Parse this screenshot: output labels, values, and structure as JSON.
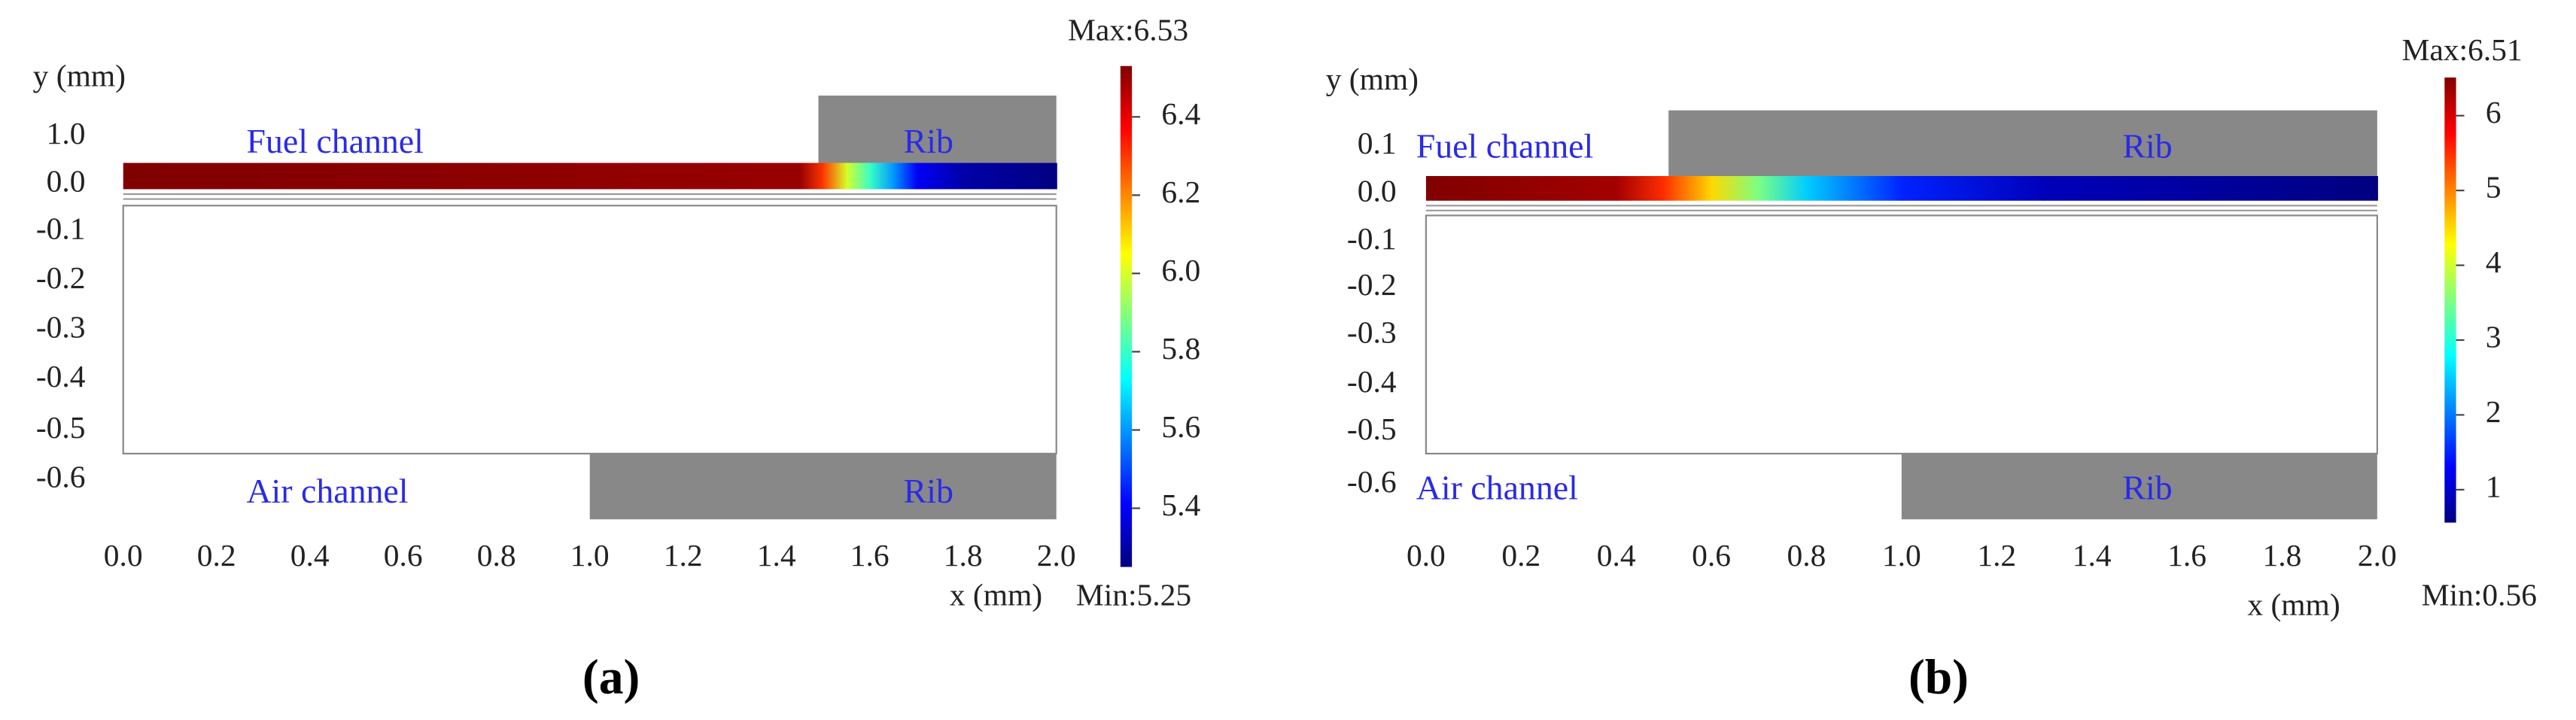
{
  "chart_data": [
    {
      "type": "heatmap",
      "panel_label": "(a)",
      "x_label": "x (mm)",
      "y_label": "y (mm)",
      "xlim": [
        0,
        2
      ],
      "xticks": [
        {
          "value": 0,
          "label": "0.0"
        },
        {
          "value": 0.2,
          "label": "0.2"
        },
        {
          "value": 0.4,
          "label": "0.4"
        },
        {
          "value": 0.6,
          "label": "0.6"
        },
        {
          "value": 0.8,
          "label": "0.8"
        },
        {
          "value": 1,
          "label": "1.0"
        },
        {
          "value": 1.2,
          "label": "1.2"
        },
        {
          "value": 1.4,
          "label": "1.4"
        },
        {
          "value": 1.6,
          "label": "1.6"
        },
        {
          "value": 1.8,
          "label": "1.8"
        },
        {
          "value": 2,
          "label": "2.0"
        }
      ],
      "yticks": [
        {
          "value": 1,
          "label": "1.0"
        },
        {
          "value": 0,
          "label": "0.0"
        },
        {
          "value": -0.1,
          "label": "-0.1"
        },
        {
          "value": -0.2,
          "label": "-0.2"
        },
        {
          "value": -0.3,
          "label": "-0.3"
        },
        {
          "value": -0.4,
          "label": "-0.4"
        },
        {
          "value": -0.5,
          "label": "-0.5"
        },
        {
          "value": -0.6,
          "label": "-0.6"
        }
      ],
      "fuel_channel": "Fuel channel",
      "air_channel": "Air channel",
      "ribs": [
        {
          "name": "Rib",
          "side": "top",
          "x": [
            1.49,
            2
          ]
        },
        {
          "name": "Rib",
          "side": "bottom",
          "x": [
            1,
            2
          ]
        }
      ],
      "profile": {
        "x": [
          0,
          1.45,
          1.5,
          1.55,
          1.6,
          1.65,
          1.7,
          1.8,
          2
        ],
        "values": [
          6.53,
          6.5,
          6.3,
          6.0,
          5.8,
          5.6,
          5.4,
          5.3,
          5.25
        ]
      },
      "colorbar": {
        "max_label": "Max:6.53",
        "min_label": "Min:5.25",
        "clim": [
          5.25,
          6.53
        ],
        "ticks": [
          6.4,
          6.2,
          {
            "value": 6,
            "label": "6.0"
          },
          5.8,
          5.6,
          5.4
        ]
      }
    },
    {
      "type": "heatmap",
      "panel_label": "(b)",
      "x_label": "x (mm)",
      "y_label": "y (mm)",
      "xlim": [
        0,
        2
      ],
      "xticks": [
        {
          "value": 0,
          "label": "0.0"
        },
        {
          "value": 0.2,
          "label": "0.2"
        },
        {
          "value": 0.4,
          "label": "0.4"
        },
        {
          "value": 0.6,
          "label": "0.6"
        },
        {
          "value": 0.8,
          "label": "0.8"
        },
        {
          "value": 1,
          "label": "1.0"
        },
        {
          "value": 1.2,
          "label": "1.2"
        },
        {
          "value": 1.4,
          "label": "1.4"
        },
        {
          "value": 1.6,
          "label": "1.6"
        },
        {
          "value": 1.8,
          "label": "1.8"
        },
        {
          "value": 2,
          "label": "2.0"
        }
      ],
      "yticks": [
        0.1,
        {
          "value": 0,
          "label": "0.0"
        },
        -0.1,
        -0.2,
        -0.3,
        -0.4,
        -0.5,
        -0.6
      ],
      "fuel_channel": "Fuel channel",
      "air_channel": "Air channel",
      "ribs": [
        {
          "name": "Rib",
          "side": "top",
          "x": [
            0.51,
            2
          ]
        },
        {
          "name": "Rib",
          "side": "bottom",
          "x": [
            1,
            2
          ]
        }
      ],
      "profile": {
        "x": [
          0,
          0.4,
          0.5,
          0.6,
          0.7,
          0.8,
          1.0,
          1.3,
          2
        ],
        "values": [
          6.51,
          6.3,
          5.5,
          4.5,
          3.5,
          2.5,
          1.5,
          0.9,
          0.56
        ]
      },
      "colorbar": {
        "max_label": "Max:6.51",
        "min_label": "Min:0.56",
        "clim": [
          0.56,
          6.51
        ],
        "ticks": [
          6,
          5,
          4,
          3,
          2,
          1
        ]
      }
    }
  ]
}
